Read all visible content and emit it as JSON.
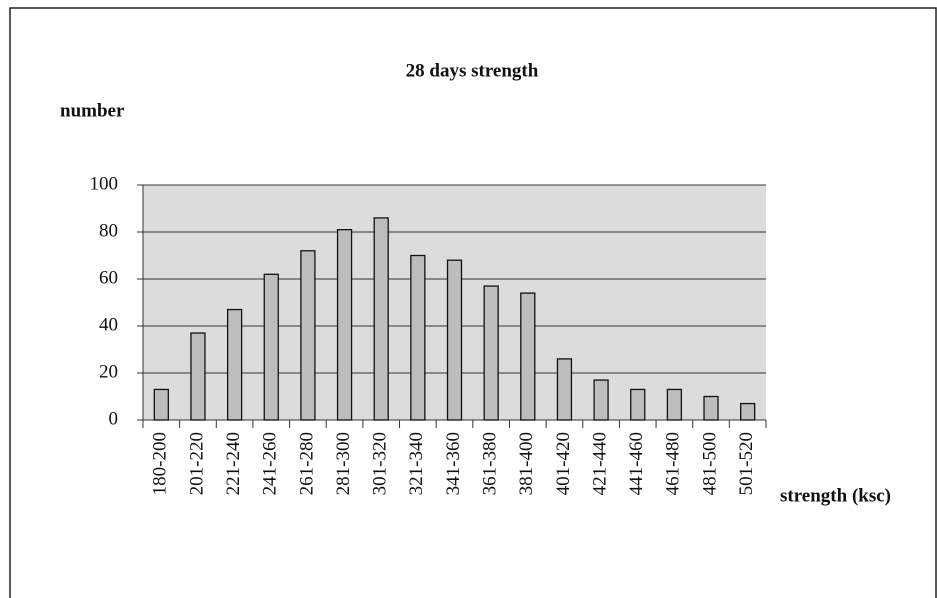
{
  "chart_data": {
    "type": "bar",
    "title": "28 days strength",
    "y_label": "number",
    "x_label": "strength (ksc)",
    "categories": [
      "180-200",
      "201-220",
      "221-240",
      "241-260",
      "261-280",
      "281-300",
      "301-320",
      "321-340",
      "341-360",
      "361-380",
      "381-400",
      "401-420",
      "421-440",
      "441-460",
      "461-480",
      "481-500",
      "501-520"
    ],
    "values": [
      13,
      37,
      47,
      62,
      72,
      81,
      86,
      70,
      68,
      57,
      54,
      26,
      17,
      13,
      13,
      10,
      7
    ],
    "color": "#bdbdbd",
    "ylim": [
      0,
      100
    ],
    "yticks": [
      0,
      20,
      40,
      60,
      80,
      100
    ],
    "grid": true
  }
}
